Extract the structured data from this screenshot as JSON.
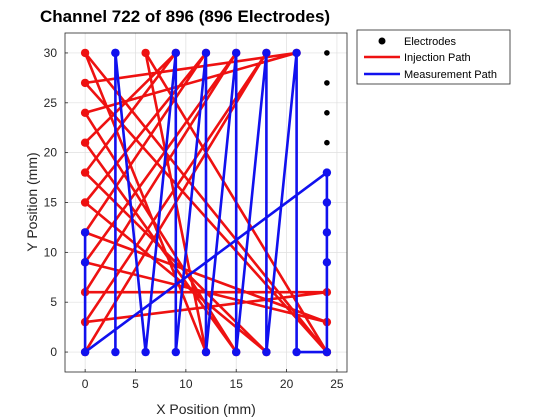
{
  "chart_data": {
    "type": "scatter",
    "title": "Channel 722 of 896 (896 Electrodes)",
    "xlabel": "X Position (mm)",
    "ylabel": "Y Position (mm)",
    "xlim": [
      -2,
      26
    ],
    "ylim": [
      -2,
      32
    ],
    "xticks": [
      0,
      5,
      10,
      15,
      20,
      25
    ],
    "yticks": [
      0,
      5,
      10,
      15,
      20,
      25,
      30
    ],
    "grid": true,
    "legend_position": "outside-top-right",
    "colors": {
      "electrodes": "#000000",
      "injection": "#ee1111",
      "measurement": "#1111ee"
    },
    "legend": [
      "Electrodes",
      "Injection Path",
      "Measurement Path"
    ],
    "series": [
      {
        "name": "Electrodes",
        "style": "markers",
        "points": [
          [
            24,
            30
          ],
          [
            24,
            27
          ],
          [
            24,
            24
          ],
          [
            24,
            21
          ]
        ]
      },
      {
        "name": "Injection Path",
        "style": "line-markers",
        "points": [
          [
            0,
            0
          ],
          [
            18,
            30
          ],
          [
            0,
            3
          ],
          [
            24,
            6
          ],
          [
            0,
            6
          ],
          [
            15,
            30
          ],
          [
            0,
            9
          ],
          [
            24,
            3
          ],
          [
            0,
            12
          ],
          [
            12,
            30
          ],
          [
            0,
            15
          ],
          [
            18,
            0
          ],
          [
            0,
            18
          ],
          [
            9,
            30
          ],
          [
            0,
            21
          ],
          [
            15,
            0
          ],
          [
            0,
            24
          ],
          [
            21,
            30
          ],
          [
            0,
            27
          ],
          [
            24,
            0
          ],
          [
            0,
            30
          ],
          [
            12,
            0
          ],
          [
            6,
            30
          ],
          [
            24,
            0
          ]
        ]
      },
      {
        "name": "Measurement Path",
        "style": "line-markers",
        "points": [
          [
            0,
            12
          ],
          [
            0,
            9
          ],
          [
            0,
            0
          ],
          [
            24,
            18
          ],
          [
            24,
            15
          ],
          [
            24,
            12
          ],
          [
            24,
            9
          ],
          [
            24,
            0
          ],
          [
            21,
            0
          ],
          [
            21,
            30
          ],
          [
            18,
            0
          ],
          [
            18,
            30
          ],
          [
            15,
            0
          ],
          [
            15,
            30
          ],
          [
            12,
            0
          ],
          [
            12,
            30
          ],
          [
            9,
            0
          ],
          [
            9,
            30
          ],
          [
            6,
            0
          ],
          [
            3,
            30
          ],
          [
            3,
            0
          ],
          [
            3,
            30
          ]
        ]
      }
    ]
  }
}
